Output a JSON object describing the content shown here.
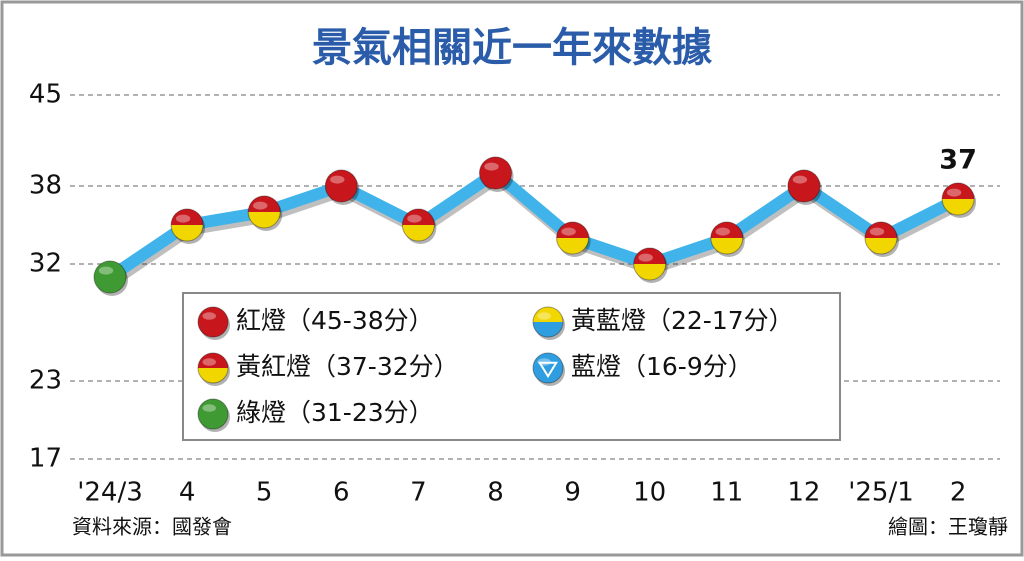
{
  "chart_data": {
    "type": "line",
    "title": "景氣相關近一年來數據",
    "categories": [
      "'24/3",
      "4",
      "5",
      "6",
      "7",
      "8",
      "9",
      "10",
      "11",
      "12",
      "'25/1",
      "2"
    ],
    "values": [
      31,
      35,
      36,
      38,
      35,
      39,
      34,
      32,
      34,
      38,
      34,
      37
    ],
    "line_color": "#3fb3ea",
    "ylim": [
      17,
      45
    ],
    "yticks": [
      17,
      23,
      32,
      38,
      45
    ],
    "grid": true,
    "legend": [
      {
        "label": "紅燈（45-38分）",
        "top": "#c8161d",
        "bottom": "#c8161d"
      },
      {
        "label": "黃紅燈（37-32分）",
        "top": "#c8161d",
        "bottom": "#f2d600"
      },
      {
        "label": "綠燈（31-23分）",
        "top": "#3f9a34",
        "bottom": "#3f9a34"
      },
      {
        "label": "黃藍燈（22-17分）",
        "top": "#f2d600",
        "bottom": "#2f9ee0"
      },
      {
        "label": "藍燈（16-9分）",
        "top": "#2f9ee0",
        "bottom": "#2f9ee0",
        "icon": "triangle"
      }
    ],
    "signals": [
      2,
      1,
      1,
      0,
      1,
      0,
      1,
      1,
      1,
      0,
      1,
      1
    ],
    "source": "資料來源：國發會",
    "credit": "繪圖：王瓊靜"
  }
}
